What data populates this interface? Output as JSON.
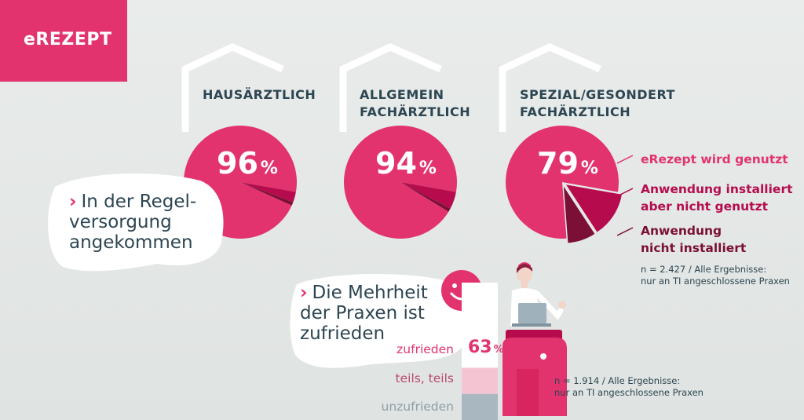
{
  "badge": {
    "label": "eREZEPT"
  },
  "colors": {
    "pink": "#e2336f",
    "dark_pink": "#b60c4e",
    "burgundy": "#7b0f36",
    "light_pink": "#f5c4d3",
    "grey_blue": "#a9b8c0",
    "text": "#2d4653"
  },
  "categories": [
    {
      "line1": "HAUSÄRZTLICH",
      "line2": "",
      "value_text": "96",
      "unit": "%"
    },
    {
      "line1": "ALLGEMEIN",
      "line2": "FACHÄRZTLICH",
      "value_text": "94",
      "unit": "%"
    },
    {
      "line1": "SPEZIAL/GESONDERT",
      "line2": "FACHÄRZTLICH",
      "value_text": "79",
      "unit": "%"
    }
  ],
  "legend": [
    {
      "line1": "eRezept wird genutzt",
      "line2": ""
    },
    {
      "line1": "Anwendung installiert",
      "line2": "aber nicht genutzt"
    },
    {
      "line1": "Anwendung",
      "line2": "nicht installiert"
    }
  ],
  "note1": {
    "line1": "n = 2.427 / Alle Ergebnisse:",
    "line2": "nur an TI angeschlossene Praxen"
  },
  "bubble1": {
    "lines": [
      "In der Regel-",
      "versorgung",
      "angekommen"
    ]
  },
  "bubble2": {
    "lines": [
      "Die Mehrheit",
      "der Praxen ist",
      "zufrieden"
    ]
  },
  "satisfaction": {
    "labels": [
      "zufrieden",
      "teils, teils",
      "unzufrieden"
    ],
    "value_text": "63",
    "unit": "%"
  },
  "note2": {
    "line1": "n = 1.914 / Alle Ergebnisse:",
    "line2": "nur an TI angeschlossene Praxen"
  },
  "chart_data": [
    {
      "type": "pie",
      "title": "HAUSÄRZTLICH",
      "categories": [
        "eRezept wird genutzt",
        "Anwendung installiert aber nicht genutzt",
        "Anwendung nicht installiert"
      ],
      "values": [
        96,
        3,
        1
      ]
    },
    {
      "type": "pie",
      "title": "ALLGEMEIN FACHÄRZTLICH",
      "categories": [
        "eRezept wird genutzt",
        "Anwendung installiert aber nicht genutzt",
        "Anwendung nicht installiert"
      ],
      "values": [
        94,
        5,
        1
      ]
    },
    {
      "type": "pie",
      "title": "SPEZIAL/GESONDERT FACHÄRZTLICH",
      "categories": [
        "eRezept wird genutzt",
        "Anwendung installiert aber nicht genutzt",
        "Anwendung nicht installiert"
      ],
      "values": [
        79,
        13,
        8
      ]
    },
    {
      "type": "bar",
      "categories": [
        "zufrieden",
        "teils, teils",
        "unzufrieden"
      ],
      "values": [
        63,
        14,
        14
      ]
    }
  ]
}
